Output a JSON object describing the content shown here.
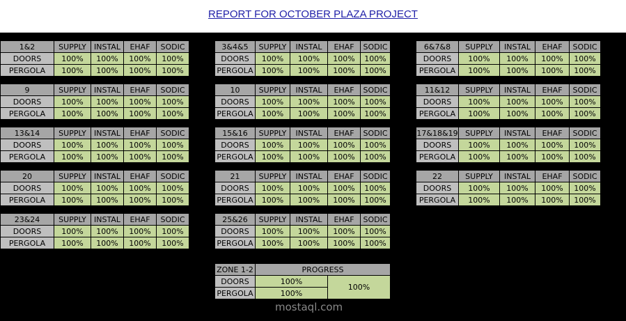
{
  "title": "REPORT FOR OCTOBER PLAZA PROJECT",
  "blocks": [
    {
      "name": "1&2",
      "columns": [
        "SUPPLY",
        "INSTAL",
        "EHAF",
        "SODIC"
      ],
      "rows": [
        {
          "label": "DOORS",
          "values": [
            "100%",
            "100%",
            "100%",
            "100%"
          ]
        },
        {
          "label": "PERGOLA",
          "values": [
            "100%",
            "100%",
            "100%",
            "100%"
          ]
        }
      ]
    },
    {
      "name": "3&4&5",
      "columns": [
        "SUPPLY",
        "INSTAL",
        "EHAF",
        "SODIC"
      ],
      "rows": [
        {
          "label": "DOORS",
          "values": [
            "100%",
            "100%",
            "100%",
            "100%"
          ]
        },
        {
          "label": "PERGOLA",
          "values": [
            "100%",
            "100%",
            "100%",
            "100%"
          ]
        }
      ]
    },
    {
      "name": "6&7&8",
      "columns": [
        "SUPPLY",
        "INSTAL",
        "EHAF",
        "SODIC"
      ],
      "rows": [
        {
          "label": "DOORS",
          "values": [
            "100%",
            "100%",
            "100%",
            "100%"
          ]
        },
        {
          "label": "PERGOLA",
          "values": [
            "100%",
            "100%",
            "100%",
            "100%"
          ]
        }
      ]
    },
    {
      "name": "9",
      "columns": [
        "SUPPLY",
        "INSTAL",
        "EHAF",
        "SODIC"
      ],
      "rows": [
        {
          "label": "DOORS",
          "values": [
            "100%",
            "100%",
            "100%",
            "100%"
          ]
        },
        {
          "label": "PERGOLA",
          "values": [
            "100%",
            "100%",
            "100%",
            "100%"
          ]
        }
      ]
    },
    {
      "name": "10",
      "columns": [
        "SUPPLY",
        "INSTAL",
        "EHAF",
        "SODIC"
      ],
      "rows": [
        {
          "label": "DOORS",
          "values": [
            "100%",
            "100%",
            "100%",
            "100%"
          ]
        },
        {
          "label": "PERGOLA",
          "values": [
            "100%",
            "100%",
            "100%",
            "100%"
          ]
        }
      ]
    },
    {
      "name": "11&12",
      "columns": [
        "SUPPLY",
        "INSTAL",
        "EHAF",
        "SODIC"
      ],
      "rows": [
        {
          "label": "DOORS",
          "values": [
            "100%",
            "100%",
            "100%",
            "100%"
          ]
        },
        {
          "label": "PERGOLA",
          "values": [
            "100%",
            "100%",
            "100%",
            "100%"
          ]
        }
      ]
    },
    {
      "name": "13&14",
      "columns": [
        "SUPPLY",
        "INSTAL",
        "EHAF",
        "SODIC"
      ],
      "rows": [
        {
          "label": "DOORS",
          "values": [
            "100%",
            "100%",
            "100%",
            "100%"
          ]
        },
        {
          "label": "PERGOLA",
          "values": [
            "100%",
            "100%",
            "100%",
            "100%"
          ]
        }
      ]
    },
    {
      "name": "15&16",
      "columns": [
        "SUPPLY",
        "INSTAL",
        "EHAF",
        "SODIC"
      ],
      "rows": [
        {
          "label": "DOORS",
          "values": [
            "100%",
            "100%",
            "100%",
            "100%"
          ]
        },
        {
          "label": "PERGOLA",
          "values": [
            "100%",
            "100%",
            "100%",
            "100%"
          ]
        }
      ]
    },
    {
      "name": "17&18&19",
      "columns": [
        "SUPPLY",
        "INSTAL",
        "EHAF",
        "SODIC"
      ],
      "rows": [
        {
          "label": "DOORS",
          "values": [
            "100%",
            "100%",
            "100%",
            "100%"
          ]
        },
        {
          "label": "PERGOLA",
          "values": [
            "100%",
            "100%",
            "100%",
            "100%"
          ]
        }
      ]
    },
    {
      "name": "20",
      "columns": [
        "SUPPLY",
        "INSTAL",
        "EHAF",
        "SODIC"
      ],
      "rows": [
        {
          "label": "DOORS",
          "values": [
            "100%",
            "100%",
            "100%",
            "100%"
          ]
        },
        {
          "label": "PERGOLA",
          "values": [
            "100%",
            "100%",
            "100%",
            "100%"
          ]
        }
      ]
    },
    {
      "name": "21",
      "columns": [
        "SUPPLY",
        "INSTAL",
        "EHAF",
        "SODIC"
      ],
      "rows": [
        {
          "label": "DOORS",
          "values": [
            "100%",
            "100%",
            "100%",
            "100%"
          ]
        },
        {
          "label": "PERGOLA",
          "values": [
            "100%",
            "100%",
            "100%",
            "100%"
          ]
        }
      ]
    },
    {
      "name": "22",
      "columns": [
        "SUPPLY",
        "INSTAL",
        "EHAF",
        "SODIC"
      ],
      "rows": [
        {
          "label": "DOORS",
          "values": [
            "100%",
            "100%",
            "100%",
            "100%"
          ]
        },
        {
          "label": "PERGOLA",
          "values": [
            "100%",
            "100%",
            "100%",
            "100%"
          ]
        }
      ]
    },
    {
      "name": "23&24",
      "columns": [
        "SUPPLY",
        "INSTAL",
        "EHAF",
        "SODIC"
      ],
      "rows": [
        {
          "label": "DOORS",
          "values": [
            "100%",
            "100%",
            "100%",
            "100%"
          ]
        },
        {
          "label": "PERGOLA",
          "values": [
            "100%",
            "100%",
            "100%",
            "100%"
          ]
        }
      ]
    },
    {
      "name": "25&26",
      "columns": [
        "SUPPLY",
        "INSTAL",
        "EHAF",
        "SODIC"
      ],
      "rows": [
        {
          "label": "DOORS",
          "values": [
            "100%",
            "100%",
            "100%",
            "100%"
          ]
        },
        {
          "label": "PERGOLA",
          "values": [
            "100%",
            "100%",
            "100%",
            "100%"
          ]
        }
      ]
    }
  ],
  "summary": {
    "name": "ZONE 1-2",
    "column": "PROGRESS",
    "rows": [
      {
        "label": "DOORS",
        "value": "100%"
      },
      {
        "label": "PERGOLA",
        "value": "100%"
      }
    ],
    "total": "100%"
  },
  "watermark": "mostaql.com"
}
